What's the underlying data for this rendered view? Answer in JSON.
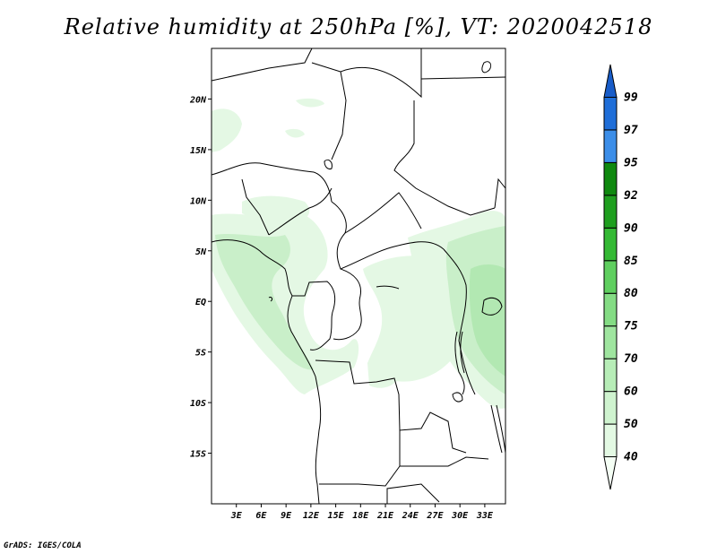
{
  "title": "Relative humidity at 250hPa [%], VT: 2020042518",
  "credit": "GrADS: IGES/COLA",
  "map": {
    "lon_range": [
      0,
      35.5
    ],
    "lat_range": [
      -20,
      25
    ],
    "x_ticks": [
      "3E",
      "6E",
      "9E",
      "12E",
      "15E",
      "18E",
      "21E",
      "24E",
      "27E",
      "30E",
      "33E"
    ],
    "x_tick_values": [
      3,
      6,
      9,
      12,
      15,
      18,
      21,
      24,
      27,
      30,
      33
    ],
    "y_ticks": [
      "20N",
      "15N",
      "10N",
      "5N",
      "EQ",
      "5S",
      "10S",
      "15S"
    ],
    "y_tick_values": [
      20,
      15,
      10,
      5,
      0,
      -5,
      -10,
      -15
    ]
  },
  "colorbar": {
    "levels": [
      "40",
      "50",
      "60",
      "70",
      "75",
      "80",
      "85",
      "90",
      "92",
      "95",
      "97",
      "99"
    ],
    "colors": [
      "#f5fff5",
      "#e3f9e3",
      "#cff3cf",
      "#b7edb7",
      "#9fe59f",
      "#84dc84",
      "#5fcf5f",
      "#34b934",
      "#1f9f1f",
      "#0f890f",
      "#3c8ee8",
      "#1f6ed8",
      "#185cc8"
    ]
  },
  "fields": {
    "humid_colors": [
      "#e4f8e4",
      "#c9efc9",
      "#b2e8b2",
      "#9ce09c"
    ]
  }
}
